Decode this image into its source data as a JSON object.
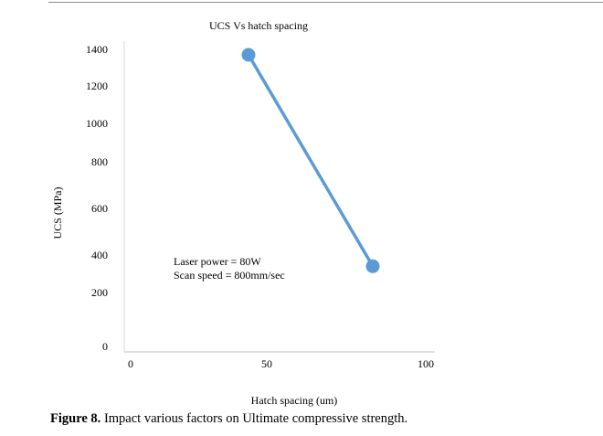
{
  "chart_data": {
    "type": "line",
    "title": "UCS Vs hatch spacing",
    "xlabel": "Hatch spacing (um)",
    "ylabel": "UCS (MPa)",
    "xlim": [
      0,
      100
    ],
    "ylim": [
      0,
      1400
    ],
    "x_ticks": [
      "0",
      "50",
      "100"
    ],
    "y_ticks": [
      "0",
      "200",
      "400",
      "600",
      "800",
      "1000",
      "1200",
      "1400"
    ],
    "grid": false,
    "series": [
      {
        "x": [
          40,
          80
        ],
        "values": [
          1370,
          340
        ],
        "color": "#5b9bd5"
      }
    ],
    "annotations": [
      "Laser power = 80W",
      "Scan speed = 800mm/sec"
    ]
  },
  "caption": {
    "label": "Figure 8.",
    "text": " Impact various factors on Ultimate compressive strength."
  }
}
